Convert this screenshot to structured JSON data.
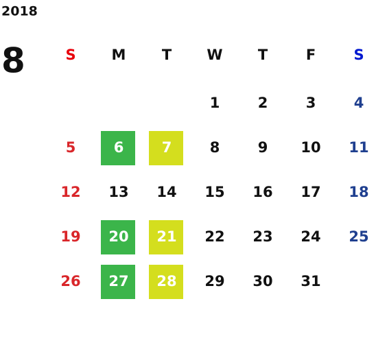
{
  "calendar": {
    "year": "2018",
    "month": "8",
    "weekdays": [
      "S",
      "M",
      "T",
      "W",
      "T",
      "F",
      "S"
    ],
    "header_colors": [
      "#e8000b",
      "#111111",
      "#111111",
      "#111111",
      "#111111",
      "#111111",
      "#0018d0"
    ],
    "day_colors": [
      "#d9262a",
      "#111111",
      "#111111",
      "#111111",
      "#111111",
      "#111111",
      "#1f3f8f"
    ],
    "weeks": [
      [
        null,
        null,
        null,
        {
          "day": 1
        },
        {
          "day": 2
        },
        {
          "day": 3
        },
        {
          "day": 4
        }
      ],
      [
        {
          "day": 5
        },
        {
          "day": 6,
          "highlight": "#3bb54a"
        },
        {
          "day": 7,
          "highlight": "#d4de1e"
        },
        {
          "day": 8
        },
        {
          "day": 9
        },
        {
          "day": 10
        },
        {
          "day": 11
        }
      ],
      [
        {
          "day": 12
        },
        {
          "day": 13
        },
        {
          "day": 14
        },
        {
          "day": 15
        },
        {
          "day": 16
        },
        {
          "day": 17
        },
        {
          "day": 18
        }
      ],
      [
        {
          "day": 19
        },
        {
          "day": 20,
          "highlight": "#3bb54a"
        },
        {
          "day": 21,
          "highlight": "#d4de1e"
        },
        {
          "day": 22
        },
        {
          "day": 23
        },
        {
          "day": 24
        },
        {
          "day": 25
        }
      ],
      [
        {
          "day": 26
        },
        {
          "day": 27,
          "highlight": "#3bb54a"
        },
        {
          "day": 28,
          "highlight": "#d4de1e"
        },
        {
          "day": 29
        },
        {
          "day": 30
        },
        {
          "day": 31
        },
        null
      ]
    ]
  }
}
